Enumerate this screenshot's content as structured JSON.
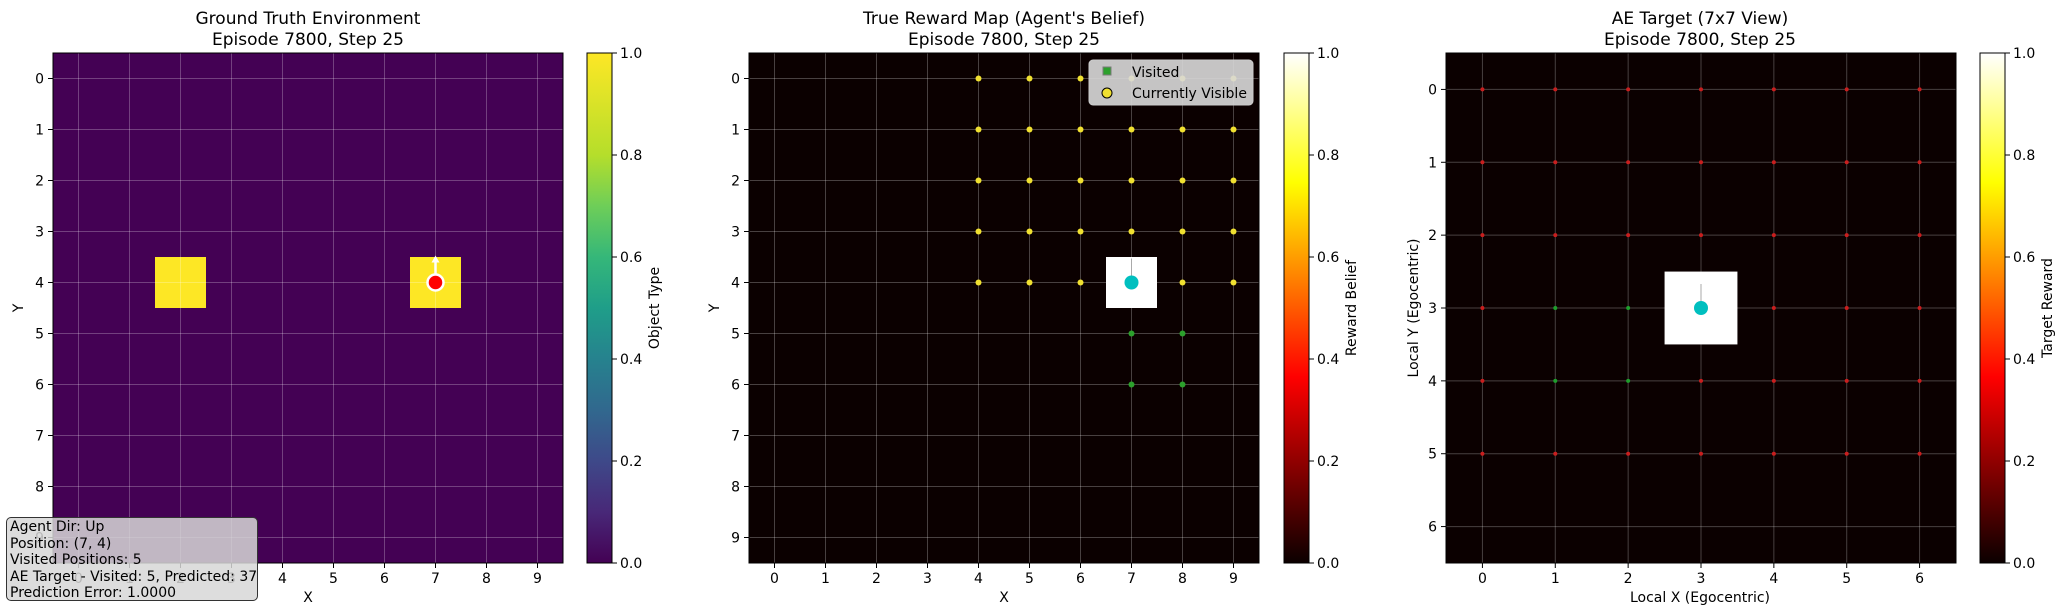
{
  "chart_data": [
    {
      "type": "heatmap",
      "title_line1": "Ground Truth Environment",
      "title_line2": "Episode 7800, Step 25",
      "xlabel": "X",
      "ylabel": "Y",
      "colorbar_label": "Object Type",
      "colormap": "viridis",
      "clim": [
        0,
        1
      ],
      "colorbar_ticks": [
        "0.0",
        "0.2",
        "0.4",
        "0.6",
        "0.8",
        "1.0"
      ],
      "grid_size": 10,
      "xticks": [
        "0",
        "1",
        "2",
        "3",
        "4",
        "5",
        "6",
        "7",
        "8",
        "9"
      ],
      "yticks": [
        "0",
        "1",
        "2",
        "3",
        "4",
        "5",
        "6",
        "7",
        "8",
        "9"
      ],
      "background_value": 0,
      "objects": [
        {
          "x": 2,
          "y": 4,
          "value": 1.0
        },
        {
          "x": 7,
          "y": 4,
          "value": 1.0
        }
      ],
      "agent": {
        "x": 7,
        "y": 4,
        "direction": "up"
      }
    },
    {
      "type": "heatmap",
      "title_line1": "True Reward Map (Agent's Belief)",
      "title_line2": "Episode 7800, Step 25",
      "xlabel": "X",
      "ylabel": "Y",
      "colorbar_label": "Reward Belief",
      "colormap": "hot",
      "clim": [
        0,
        1
      ],
      "colorbar_ticks": [
        "0.0",
        "0.2",
        "0.4",
        "0.6",
        "0.8",
        "1.0"
      ],
      "grid_size": 10,
      "xticks": [
        "0",
        "1",
        "2",
        "3",
        "4",
        "5",
        "6",
        "7",
        "8",
        "9"
      ],
      "yticks": [
        "0",
        "1",
        "2",
        "3",
        "4",
        "5",
        "6",
        "7",
        "8",
        "9"
      ],
      "background_value": 0,
      "cells": [
        {
          "x": 7,
          "y": 4,
          "value": 1.0
        }
      ],
      "legend": [
        "Visited",
        "Currently Visible"
      ],
      "legend_position": "top-right",
      "visited": [
        [
          7,
          5
        ],
        [
          8,
          5
        ],
        [
          7,
          6
        ],
        [
          8,
          6
        ]
      ],
      "visible": [
        [
          4,
          0
        ],
        [
          5,
          0
        ],
        [
          6,
          0
        ],
        [
          7,
          0
        ],
        [
          8,
          0
        ],
        [
          9,
          0
        ],
        [
          4,
          1
        ],
        [
          5,
          1
        ],
        [
          6,
          1
        ],
        [
          7,
          1
        ],
        [
          8,
          1
        ],
        [
          9,
          1
        ],
        [
          4,
          2
        ],
        [
          5,
          2
        ],
        [
          6,
          2
        ],
        [
          7,
          2
        ],
        [
          8,
          2
        ],
        [
          9,
          2
        ],
        [
          4,
          3
        ],
        [
          5,
          3
        ],
        [
          6,
          3
        ],
        [
          7,
          3
        ],
        [
          8,
          3
        ],
        [
          9,
          3
        ],
        [
          4,
          4
        ],
        [
          5,
          4
        ],
        [
          6,
          4
        ],
        [
          8,
          4
        ],
        [
          9,
          4
        ]
      ],
      "agent": {
        "x": 7,
        "y": 4,
        "direction": "up"
      }
    },
    {
      "type": "heatmap",
      "title_line1": "AE Target (7x7 View)",
      "title_line2": "Episode 7800, Step 25",
      "xlabel": "Local X (Egocentric)",
      "ylabel": "Local Y (Egocentric)",
      "colorbar_label": "Target Reward",
      "colormap": "hot",
      "clim": [
        0,
        1
      ],
      "colorbar_ticks": [
        "0.0",
        "0.2",
        "0.4",
        "0.6",
        "0.8",
        "1.0"
      ],
      "grid_size": 7,
      "xticks": [
        "0",
        "1",
        "2",
        "3",
        "4",
        "5",
        "6"
      ],
      "yticks": [
        "0",
        "1",
        "2",
        "3",
        "4",
        "5",
        "6"
      ],
      "background_value": 0,
      "cells": [
        {
          "x": 3,
          "y": 3,
          "value": 1.0
        }
      ],
      "red_points": [
        [
          0,
          0
        ],
        [
          1,
          0
        ],
        [
          2,
          0
        ],
        [
          3,
          0
        ],
        [
          4,
          0
        ],
        [
          5,
          0
        ],
        [
          6,
          0
        ],
        [
          0,
          1
        ],
        [
          1,
          1
        ],
        [
          2,
          1
        ],
        [
          3,
          1
        ],
        [
          4,
          1
        ],
        [
          5,
          1
        ],
        [
          6,
          1
        ],
        [
          0,
          2
        ],
        [
          1,
          2
        ],
        [
          2,
          2
        ],
        [
          3,
          2
        ],
        [
          4,
          2
        ],
        [
          5,
          2
        ],
        [
          6,
          2
        ],
        [
          0,
          3
        ],
        [
          4,
          3
        ],
        [
          5,
          3
        ],
        [
          6,
          3
        ],
        [
          0,
          4
        ],
        [
          3,
          4
        ],
        [
          4,
          4
        ],
        [
          5,
          4
        ],
        [
          6,
          4
        ],
        [
          0,
          5
        ],
        [
          1,
          5
        ],
        [
          2,
          5
        ],
        [
          3,
          5
        ],
        [
          4,
          5
        ],
        [
          5,
          5
        ],
        [
          6,
          5
        ]
      ],
      "green_points": [
        [
          1,
          3
        ],
        [
          2,
          3
        ],
        [
          1,
          4
        ],
        [
          2,
          4
        ]
      ],
      "agent": {
        "x": 3,
        "y": 3,
        "direction": "up"
      }
    }
  ],
  "info_box": {
    "lines": [
      "Agent Dir: Up",
      "Position: (7, 4)",
      "Visited Positions: 5",
      "AE Target - Visited: 5, Predicted: 37",
      "Prediction Error: 1.0000"
    ]
  },
  "colors": {
    "viridis_low": "#440154",
    "viridis_high": "#fde725",
    "hot_low": "#0b0000",
    "agent_red": "#ff0000",
    "agent_cyan": "#00bfbf",
    "visited_green": "#2ca02c",
    "visible_yellow": "#f0e030"
  }
}
